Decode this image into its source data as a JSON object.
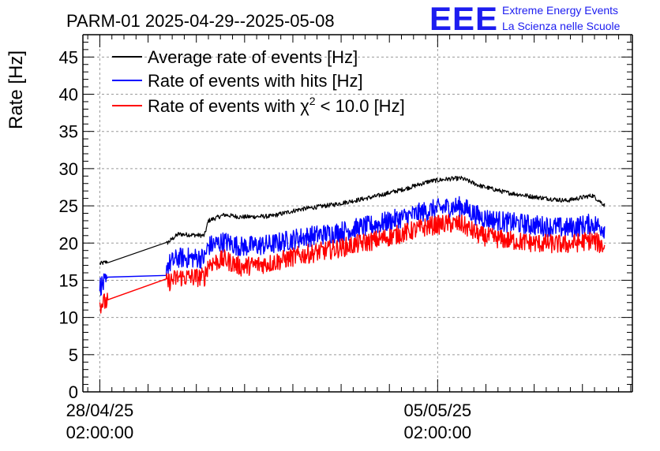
{
  "page": {
    "title": "PARM-01 2025-04-29--2025-05-08",
    "logo": {
      "mark": "EEE",
      "line1": "Extreme Energy Events",
      "line2": "La Scienza nelle Scuole"
    }
  },
  "colors": {
    "average": "#000000",
    "hits": "#0000ff",
    "chi2": "#ff0000",
    "logo": "#1c1cf0"
  },
  "chart_data": {
    "type": "line",
    "title": "PARM-01 2025-04-29--2025-05-08",
    "ylabel": "Rate [Hz]",
    "xlabel": "",
    "ylim": [
      0,
      48
    ],
    "xlim": [
      "2025-04-27T17:35:00",
      "2025-05-09T02:50:00"
    ],
    "yticks": [
      0,
      5,
      10,
      15,
      20,
      25,
      30,
      35,
      40,
      45
    ],
    "xticks": [
      {
        "x": "2025-04-28T02:00:00",
        "label_date": "28/04/25",
        "label_time": "02:00:00"
      },
      {
        "x": "2025-05-05T02:00:00",
        "label_date": "05/05/25",
        "label_time": "02:00:00"
      }
    ],
    "grid": true,
    "legend_position": "top-left",
    "series": [
      {
        "name": "Average rate of events [Hz]",
        "legend_label": "Average rate of events [Hz]",
        "color": "#000000",
        "noise": 0.3,
        "x": [
          "2025-04-28T02:00:00",
          "2025-04-29T11:00:00",
          "2025-04-29T17:00:00",
          "2025-04-30T06:00:00",
          "2025-04-30T08:00:00",
          "2025-04-30T16:00:00",
          "2025-05-01T00:00:00",
          "2025-05-01T15:00:00",
          "2025-05-02T05:00:00",
          "2025-05-02T23:00:00",
          "2025-05-03T18:00:00",
          "2025-05-04T10:00:00",
          "2025-05-04T22:00:00",
          "2025-05-05T07:00:00",
          "2025-05-05T14:00:00",
          "2025-05-05T23:00:00",
          "2025-05-06T12:00:00",
          "2025-05-07T02:00:00",
          "2025-05-07T18:00:00",
          "2025-05-08T07:00:00",
          "2025-05-08T13:00:00"
        ],
        "y": [
          17.2,
          19.9,
          21.2,
          21.0,
          23.0,
          23.8,
          23.5,
          23.6,
          24.5,
          25.2,
          26.2,
          27.3,
          28.3,
          28.6,
          28.7,
          27.7,
          26.8,
          26.2,
          25.7,
          26.4,
          25.1
        ]
      },
      {
        "name": "Rate of events with hits [Hz]",
        "legend_label": "Rate of events with hits [Hz]",
        "color": "#0000ff",
        "noise": 1.4,
        "x": [
          "2025-04-28T02:00:00",
          "2025-04-29T11:00:00",
          "2025-04-29T17:00:00",
          "2025-04-30T06:00:00",
          "2025-04-30T08:00:00",
          "2025-04-30T16:00:00",
          "2025-05-01T00:00:00",
          "2025-05-01T15:00:00",
          "2025-05-02T05:00:00",
          "2025-05-02T23:00:00",
          "2025-05-03T18:00:00",
          "2025-05-04T10:00:00",
          "2025-05-04T22:00:00",
          "2025-05-05T07:00:00",
          "2025-05-05T14:00:00",
          "2025-05-05T23:00:00",
          "2025-05-06T12:00:00",
          "2025-05-07T02:00:00",
          "2025-05-07T18:00:00",
          "2025-05-08T07:00:00",
          "2025-05-08T13:00:00"
        ],
        "y": [
          14.3,
          16.9,
          18.0,
          18.0,
          19.6,
          20.2,
          19.5,
          19.8,
          20.7,
          21.4,
          22.4,
          23.5,
          24.4,
          24.8,
          24.9,
          23.5,
          22.8,
          22.4,
          22.0,
          22.6,
          22.0
        ]
      },
      {
        "name": "Rate of events with χ² < 10.0 [Hz]",
        "legend_label": "Rate of events with χ",
        "legend_sup": "2",
        "legend_suffix": " < 10.0 [Hz]",
        "color": "#ff0000",
        "noise": 1.3,
        "x": [
          "2025-04-28T02:00:00",
          "2025-04-29T11:00:00",
          "2025-04-29T17:00:00",
          "2025-04-30T06:00:00",
          "2025-04-30T08:00:00",
          "2025-04-30T16:00:00",
          "2025-05-01T00:00:00",
          "2025-05-01T15:00:00",
          "2025-05-02T05:00:00",
          "2025-05-02T23:00:00",
          "2025-05-03T18:00:00",
          "2025-05-04T10:00:00",
          "2025-05-04T22:00:00",
          "2025-05-05T07:00:00",
          "2025-05-05T14:00:00",
          "2025-05-05T23:00:00",
          "2025-05-06T12:00:00",
          "2025-05-07T02:00:00",
          "2025-05-07T18:00:00",
          "2025-05-08T07:00:00",
          "2025-05-08T13:00:00"
        ],
        "y": [
          11.8,
          14.6,
          15.4,
          15.4,
          17.2,
          17.8,
          16.8,
          17.3,
          18.3,
          19.2,
          20.3,
          21.4,
          22.3,
          22.6,
          22.5,
          21.0,
          20.4,
          20.0,
          19.8,
          20.4,
          19.5
        ]
      }
    ]
  }
}
